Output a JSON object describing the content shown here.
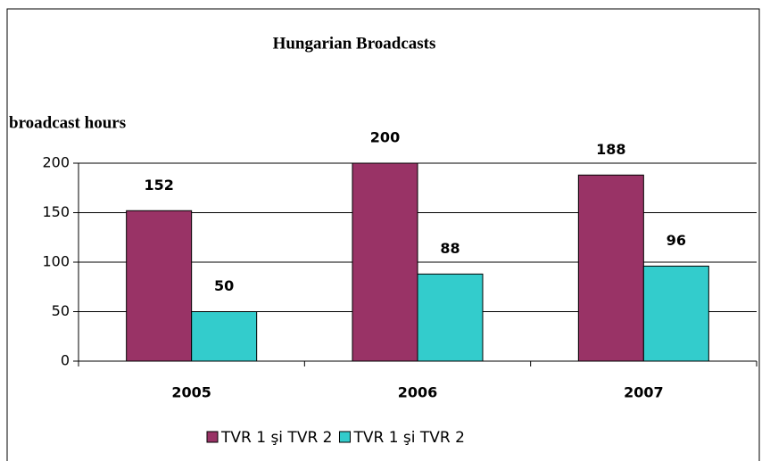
{
  "chart_data": {
    "type": "bar",
    "title": "Hungarian Broadcasts",
    "y_label": "broadcast hours",
    "categories": [
      "2005",
      "2006",
      "2007"
    ],
    "series": [
      {
        "name": "TVR 1 şi TVR 2",
        "color": "#993366",
        "values": [
          152,
          200,
          188
        ]
      },
      {
        "name": "TVR 1 şi TVR 2",
        "color": "#33cccc",
        "values": [
          50,
          88,
          96
        ]
      }
    ],
    "ylim": [
      0,
      200
    ],
    "yticks": [
      0,
      50,
      100,
      150,
      200
    ],
    "grid": true,
    "legend": "bottom"
  }
}
